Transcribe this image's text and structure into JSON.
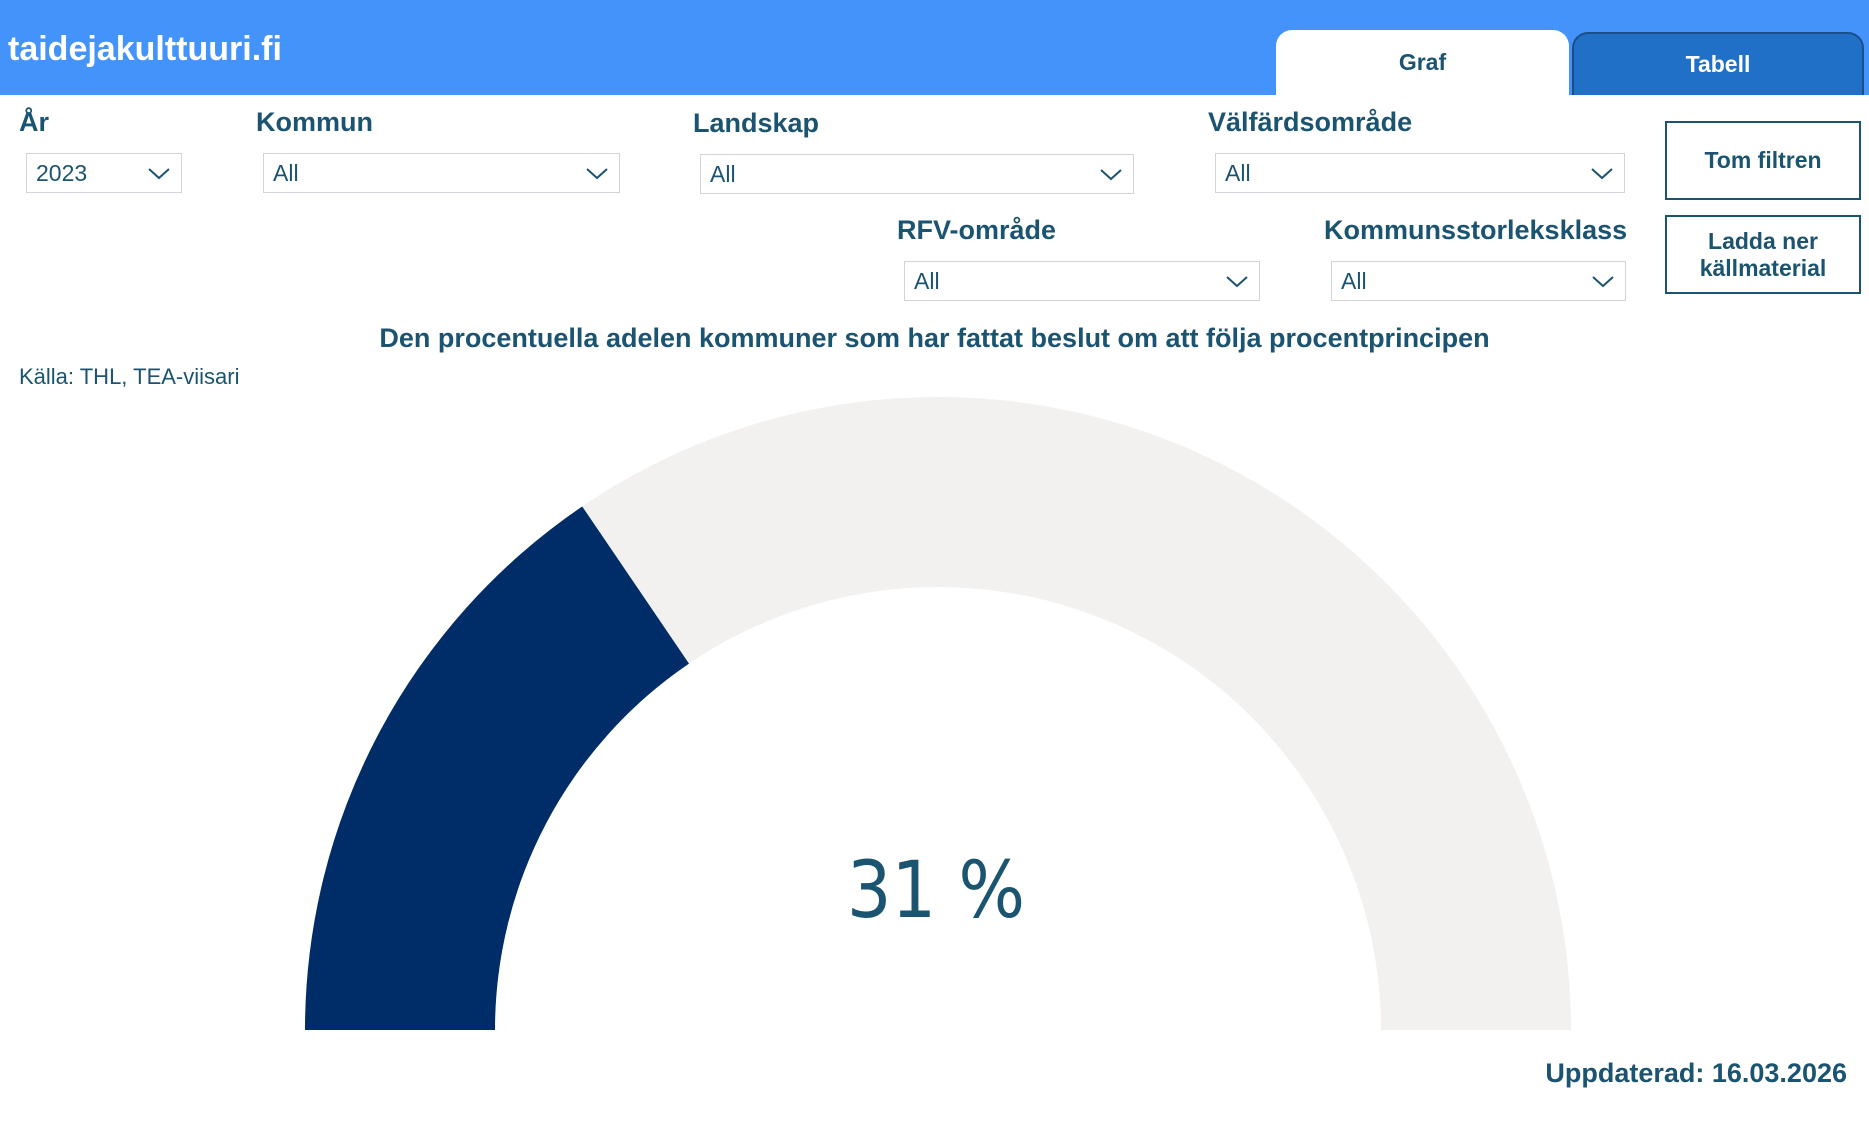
{
  "header": {
    "site_title": "taidejakulttuuri.fi",
    "tabs": [
      {
        "label": "Graf",
        "active": true
      },
      {
        "label": "Tabell",
        "active": false
      }
    ],
    "bar_color": "#4493fb"
  },
  "filters": {
    "year": {
      "label": "År",
      "value": "2023"
    },
    "municipality": {
      "label": "Kommun",
      "value": "All"
    },
    "region": {
      "label": "Landskap",
      "value": "All"
    },
    "wellbeing_area": {
      "label": "Välfärdsområde",
      "value": "All"
    },
    "rfv_area": {
      "label": "RFV-område",
      "value": "All"
    },
    "size_class": {
      "label": "Kommunsstorleksklass",
      "value": "All"
    }
  },
  "actions": {
    "clear_filters": "Tom filtren",
    "download_line1": "Ladda ner",
    "download_line2": "källmaterial"
  },
  "chart_data": {
    "type": "gauge",
    "title": "Den procentuella adelen kommuner som har fattat beslut om att följa procentprincipen",
    "value": 31,
    "min": 0,
    "max": 100,
    "value_label": "31 %",
    "fill_color": "#002d67",
    "track_color": "#f2f1f0"
  },
  "source": "Källa: THL, TEA-viisari",
  "updated": "Uppdaterad: 16.03.2026"
}
